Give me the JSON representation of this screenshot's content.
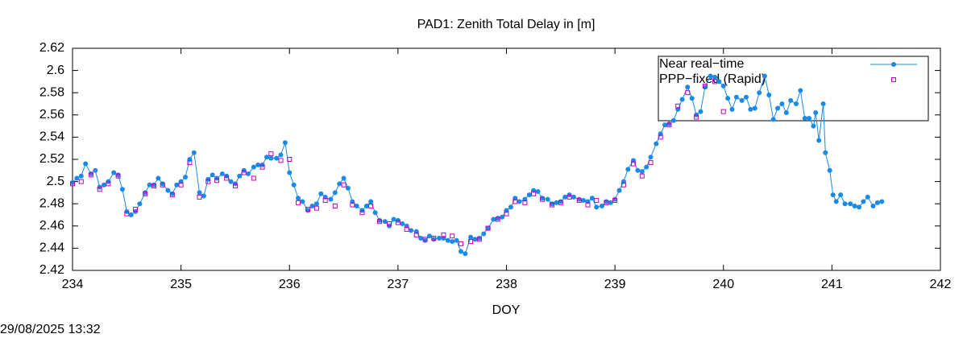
{
  "chart_data": {
    "type": "line",
    "title": "PAD1: Zenith Total Delay in [m]",
    "xlabel": "DOY",
    "timestamp": "29/08/2025 13:32",
    "xlim": [
      234,
      242
    ],
    "xticks": [
      234,
      235,
      236,
      237,
      238,
      239,
      240,
      241,
      242
    ],
    "ylim": [
      2.42,
      2.62
    ],
    "yticks": [
      2.42,
      2.44,
      2.46,
      2.48,
      2.5,
      2.52,
      2.54,
      2.56,
      2.58,
      2.6,
      2.62
    ],
    "legend": "top right",
    "series": [
      {
        "name": "Near real−time",
        "color": "#1a8ae8",
        "style": "linespoints",
        "x": [
          234.0,
          234.04,
          234.08,
          234.12,
          234.17,
          234.21,
          234.25,
          234.29,
          234.33,
          234.38,
          234.42,
          234.46,
          234.5,
          234.54,
          234.58,
          234.62,
          234.67,
          234.71,
          234.75,
          234.79,
          234.83,
          234.88,
          234.92,
          234.96,
          235.0,
          235.04,
          235.08,
          235.12,
          235.17,
          235.21,
          235.25,
          235.29,
          235.33,
          235.38,
          235.42,
          235.46,
          235.5,
          235.54,
          235.58,
          235.62,
          235.67,
          235.71,
          235.75,
          235.79,
          235.83,
          235.88,
          235.92,
          235.96,
          236.0,
          236.04,
          236.08,
          236.12,
          236.17,
          236.21,
          236.25,
          236.29,
          236.33,
          236.38,
          236.42,
          236.46,
          236.5,
          236.54,
          236.58,
          236.62,
          236.67,
          236.71,
          236.75,
          236.79,
          236.83,
          236.88,
          236.92,
          236.96,
          237.0,
          237.04,
          237.08,
          237.12,
          237.17,
          237.21,
          237.25,
          237.29,
          237.33,
          237.38,
          237.42,
          237.46,
          237.5,
          237.54,
          237.58,
          237.62,
          237.67,
          237.71,
          237.75,
          237.79,
          237.83,
          237.88,
          237.92,
          237.96,
          238.0,
          238.04,
          238.08,
          238.12,
          238.17,
          238.21,
          238.25,
          238.29,
          238.33,
          238.38,
          238.42,
          238.46,
          238.5,
          238.54,
          238.58,
          238.62,
          238.67,
          238.71,
          238.75,
          238.79,
          238.83,
          238.88,
          238.92,
          238.96,
          239.0,
          239.04,
          239.08,
          239.12,
          239.17,
          239.21,
          239.25,
          239.29,
          239.33,
          239.38,
          239.42,
          239.46,
          239.5,
          239.54,
          239.58,
          239.62,
          239.67,
          239.71,
          239.75,
          239.79,
          239.83,
          239.88,
          239.92,
          239.96,
          240.0,
          240.04,
          240.08,
          240.12,
          240.17,
          240.21,
          240.25,
          240.29,
          240.33,
          240.38,
          240.42,
          240.46,
          240.5,
          240.54,
          240.58,
          240.62,
          240.67,
          240.71,
          240.75,
          240.79,
          240.83,
          240.85,
          240.88,
          240.92,
          240.94,
          240.98,
          241.01,
          241.04,
          241.08,
          241.12,
          241.17,
          241.21,
          241.25,
          241.29,
          241.33,
          241.38,
          241.42,
          241.46
        ],
        "values": [
          2.499,
          2.503,
          2.505,
          2.516,
          2.507,
          2.51,
          2.495,
          2.497,
          2.5,
          2.508,
          2.506,
          2.493,
          2.473,
          2.47,
          2.473,
          2.48,
          2.49,
          2.497,
          2.497,
          2.503,
          2.498,
          2.492,
          2.489,
          2.497,
          2.5,
          2.504,
          2.52,
          2.526,
          2.49,
          2.487,
          2.502,
          2.506,
          2.503,
          2.507,
          2.505,
          2.5,
          2.498,
          2.505,
          2.51,
          2.507,
          2.513,
          2.515,
          2.515,
          2.522,
          2.521,
          2.521,
          2.524,
          2.535,
          2.508,
          2.497,
          2.485,
          2.482,
          2.474,
          2.478,
          2.48,
          2.489,
          2.486,
          2.484,
          2.49,
          2.498,
          2.503,
          2.494,
          2.482,
          2.478,
          2.474,
          2.478,
          2.482,
          2.472,
          2.465,
          2.464,
          2.46,
          2.466,
          2.465,
          2.462,
          2.46,
          2.456,
          2.455,
          2.449,
          2.447,
          2.451,
          2.448,
          2.449,
          2.449,
          2.447,
          2.446,
          2.447,
          2.437,
          2.435,
          2.45,
          2.448,
          2.449,
          2.453,
          2.458,
          2.466,
          2.467,
          2.468,
          2.474,
          2.477,
          2.485,
          2.482,
          2.484,
          2.488,
          2.492,
          2.491,
          2.485,
          2.484,
          2.48,
          2.481,
          2.482,
          2.486,
          2.488,
          2.486,
          2.484,
          2.483,
          2.482,
          2.485,
          2.477,
          2.478,
          2.482,
          2.481,
          2.484,
          2.492,
          2.5,
          2.511,
          2.519,
          2.51,
          2.509,
          2.513,
          2.522,
          2.534,
          2.543,
          2.551,
          2.552,
          2.555,
          2.565,
          2.574,
          2.585,
          2.575,
          2.56,
          2.563,
          2.585,
          2.595,
          2.594,
          2.59,
          2.586,
          2.575,
          2.565,
          2.576,
          2.573,
          2.576,
          2.565,
          2.566,
          2.58,
          2.595,
          2.578,
          2.556,
          2.566,
          2.57,
          2.562,
          2.573,
          2.57,
          2.582,
          2.557,
          2.557,
          2.55,
          2.562,
          2.537,
          2.57,
          2.526,
          2.51,
          2.488,
          2.482,
          2.488,
          2.48,
          2.48,
          2.478,
          2.477,
          2.482,
          2.486,
          2.478,
          2.481,
          2.482
        ]
      },
      {
        "name": "PPP−fixed (Rapid)",
        "color": "#c000c0",
        "style": "points",
        "x": [
          234.0,
          234.08,
          234.17,
          234.25,
          234.33,
          234.42,
          234.5,
          234.58,
          234.67,
          234.75,
          234.83,
          234.92,
          235.0,
          235.08,
          235.17,
          235.25,
          235.33,
          235.42,
          235.5,
          235.58,
          235.67,
          235.75,
          235.83,
          235.92,
          236.0,
          236.08,
          236.17,
          236.25,
          236.33,
          236.42,
          236.5,
          236.58,
          236.67,
          236.75,
          236.83,
          236.92,
          237.0,
          237.08,
          237.17,
          237.25,
          237.33,
          237.42,
          237.5,
          237.58,
          237.67,
          237.75,
          237.83,
          237.92,
          238.0,
          238.08,
          238.17,
          238.25,
          238.33,
          238.42,
          238.5,
          238.58,
          238.67,
          238.75,
          238.83,
          238.92,
          239.0,
          239.08,
          239.17,
          239.25,
          239.33,
          239.42,
          239.5,
          239.58,
          239.67,
          239.75,
          239.83,
          239.92,
          240.0
        ],
        "values": [
          2.498,
          2.5,
          2.506,
          2.493,
          2.498,
          2.505,
          2.471,
          2.475,
          2.489,
          2.496,
          2.497,
          2.488,
          2.497,
          2.517,
          2.486,
          2.5,
          2.501,
          2.503,
          2.496,
          2.508,
          2.503,
          2.513,
          2.525,
          2.519,
          2.52,
          2.481,
          2.475,
          2.476,
          2.483,
          2.478,
          2.497,
          2.479,
          2.472,
          2.478,
          2.464,
          2.462,
          2.463,
          2.457,
          2.452,
          2.448,
          2.449,
          2.452,
          2.451,
          2.444,
          2.446,
          2.448,
          2.458,
          2.466,
          2.471,
          2.482,
          2.481,
          2.489,
          2.484,
          2.479,
          2.481,
          2.486,
          2.483,
          2.479,
          2.483,
          2.481,
          2.483,
          2.497,
          2.516,
          2.505,
          2.517,
          2.54,
          2.551,
          2.568,
          2.58,
          2.558,
          2.586,
          2.59,
          2.563
        ]
      }
    ]
  }
}
